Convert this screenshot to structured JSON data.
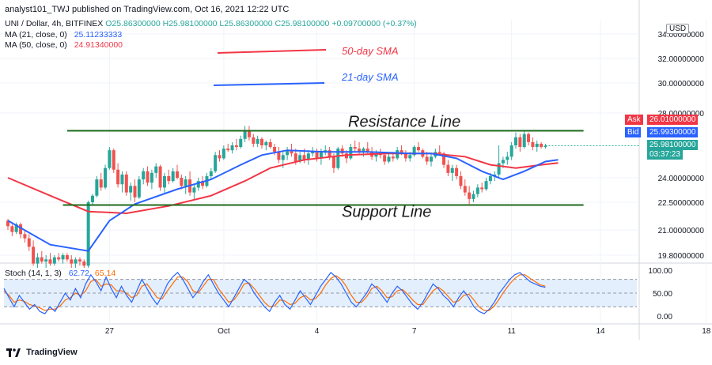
{
  "header": {
    "published": "analyst101_TWJ published on TradingView.com, Oct 16, 2021 12:22 UTC"
  },
  "legend": {
    "symbol": "UNI / Dollar, 4h, BITFINEX",
    "ohlc": "O25.86300000  H25.98100000  L25.86300000  C25.98100000  +0.09700000 (+0.37%)",
    "ma21_label": "MA (21, close, 0)",
    "ma21_value": "25.11233333",
    "ma50_label": "MA (50, close, 0)",
    "ma50_value": "24.91340000",
    "stoch_label": "Stoch (14, 1, 3)",
    "stoch_k": "62.72",
    "stoch_d": "65.14"
  },
  "currency_badge": "USD",
  "price_labels": {
    "ask_tag": "Ask",
    "ask": "26.01000000",
    "bid_tag": "Bid",
    "bid": "25.99300000",
    "last": "25.98100000",
    "countdown": "03:37:23"
  },
  "footer": {
    "brand": "TradingView"
  },
  "colors": {
    "up": "#26a69a",
    "down": "#ef5350",
    "ma21": "#2962ff",
    "ma50": "#f23645",
    "annotation_line": "#1e6b1e",
    "stoch_k": "#2962ff",
    "stoch_d": "#ff6d00",
    "stoch_band": "#e3effd"
  },
  "chart_data": {
    "type": "candlestick",
    "y_axis": {
      "ticks": [
        "34.00000000",
        "32.00000000",
        "30.00000000",
        "28.00000000",
        "24.00000000",
        "22.50000000",
        "21.00000000",
        "19.80000000"
      ],
      "tick_values": [
        34.0,
        32.0,
        30.0,
        28.0,
        24.0,
        22.5,
        21.0,
        19.8
      ]
    },
    "x_axis": {
      "ticks": [
        "27",
        "Oct",
        "4",
        "7",
        "11",
        "14",
        "18"
      ],
      "tick_index": [
        24,
        51,
        73,
        96,
        119,
        140,
        165
      ]
    },
    "annotations": {
      "legend_50": "50-day SMA",
      "legend_21": "21-day SMA",
      "resistance_label": "Resistance Line",
      "support_label": "Support Line",
      "resistance": 26.9,
      "support": 22.35
    },
    "candles": [
      [
        21.5,
        21.6,
        21.0,
        21.2
      ],
      [
        21.2,
        21.3,
        20.7,
        20.9
      ],
      [
        20.9,
        21.4,
        20.8,
        21.3
      ],
      [
        21.3,
        21.4,
        20.6,
        20.8
      ],
      [
        20.8,
        21.0,
        20.4,
        20.6
      ],
      [
        20.6,
        20.8,
        20.0,
        20.2
      ],
      [
        20.2,
        20.5,
        19.3,
        19.4
      ],
      [
        19.4,
        19.9,
        19.2,
        19.7
      ],
      [
        19.7,
        20.0,
        19.4,
        19.5
      ],
      [
        19.5,
        19.8,
        19.2,
        19.6
      ],
      [
        19.6,
        19.9,
        19.3,
        19.4
      ],
      [
        19.4,
        19.8,
        19.3,
        19.7
      ],
      [
        19.7,
        19.9,
        19.5,
        19.6
      ],
      [
        19.6,
        19.9,
        19.4,
        19.8
      ],
      [
        19.8,
        19.9,
        19.5,
        19.6
      ],
      [
        19.6,
        19.8,
        19.2,
        19.4
      ],
      [
        19.4,
        19.7,
        19.2,
        19.6
      ],
      [
        19.6,
        19.7,
        19.3,
        19.5
      ],
      [
        19.5,
        19.6,
        19.2,
        19.3
      ],
      [
        19.3,
        22.6,
        19.2,
        22.5
      ],
      [
        22.5,
        23.0,
        22.3,
        22.9
      ],
      [
        22.9,
        24.1,
        22.8,
        23.9
      ],
      [
        23.9,
        24.3,
        23.2,
        23.4
      ],
      [
        23.4,
        24.8,
        23.3,
        24.6
      ],
      [
        24.6,
        25.9,
        24.5,
        25.7
      ],
      [
        25.7,
        25.8,
        24.3,
        24.5
      ],
      [
        24.5,
        24.9,
        23.4,
        23.6
      ],
      [
        23.6,
        24.4,
        23.1,
        24.2
      ],
      [
        24.2,
        24.4,
        22.9,
        23.1
      ],
      [
        23.1,
        23.7,
        22.6,
        23.5
      ],
      [
        23.5,
        23.9,
        22.5,
        22.8
      ],
      [
        22.8,
        24.1,
        22.7,
        23.9
      ],
      [
        23.9,
        24.6,
        23.6,
        24.4
      ],
      [
        24.4,
        24.7,
        23.5,
        23.7
      ],
      [
        23.7,
        24.5,
        23.3,
        24.3
      ],
      [
        24.3,
        24.9,
        24.0,
        24.7
      ],
      [
        24.7,
        24.8,
        23.2,
        23.4
      ],
      [
        23.4,
        24.3,
        23.0,
        24.1
      ],
      [
        24.1,
        24.5,
        23.6,
        23.8
      ],
      [
        23.8,
        24.6,
        23.7,
        24.4
      ],
      [
        24.4,
        24.8,
        23.9,
        24.0
      ],
      [
        24.0,
        24.2,
        23.3,
        23.5
      ],
      [
        23.5,
        24.1,
        23.0,
        23.9
      ],
      [
        23.9,
        24.4,
        22.9,
        23.1
      ],
      [
        23.1,
        23.6,
        22.7,
        23.4
      ],
      [
        23.4,
        24.0,
        23.2,
        23.8
      ],
      [
        23.8,
        24.1,
        23.3,
        23.5
      ],
      [
        23.5,
        24.3,
        23.4,
        24.1
      ],
      [
        24.1,
        24.6,
        23.9,
        24.4
      ],
      [
        24.4,
        25.6,
        24.3,
        25.4
      ],
      [
        25.4,
        25.7,
        25.0,
        25.2
      ],
      [
        25.2,
        26.0,
        25.1,
        25.8
      ],
      [
        25.8,
        26.1,
        25.6,
        25.7
      ],
      [
        25.7,
        26.2,
        25.5,
        26.0
      ],
      [
        26.0,
        26.4,
        25.7,
        25.9
      ],
      [
        25.9,
        26.6,
        25.8,
        26.4
      ],
      [
        26.4,
        27.2,
        26.2,
        26.9
      ],
      [
        26.9,
        27.2,
        26.3,
        26.5
      ],
      [
        26.5,
        26.7,
        25.9,
        26.1
      ],
      [
        26.1,
        26.6,
        25.9,
        26.4
      ],
      [
        26.4,
        26.5,
        25.8,
        26.0
      ],
      [
        26.0,
        26.3,
        25.7,
        26.2
      ],
      [
        26.2,
        26.4,
        25.8,
        25.9
      ],
      [
        25.9,
        26.1,
        25.4,
        25.6
      ],
      [
        25.6,
        25.9,
        24.9,
        25.1
      ],
      [
        25.1,
        25.6,
        24.6,
        25.4
      ],
      [
        25.4,
        25.9,
        25.1,
        25.7
      ],
      [
        25.7,
        26.1,
        25.3,
        25.5
      ],
      [
        25.5,
        25.8,
        24.8,
        25.0
      ],
      [
        25.0,
        25.6,
        24.9,
        25.4
      ],
      [
        25.4,
        25.8,
        24.9,
        25.1
      ],
      [
        25.1,
        25.7,
        24.8,
        25.5
      ],
      [
        25.5,
        25.9,
        25.3,
        25.6
      ],
      [
        25.6,
        25.8,
        25.0,
        25.2
      ],
      [
        25.2,
        25.8,
        24.8,
        25.6
      ],
      [
        25.6,
        26.0,
        25.4,
        25.7
      ],
      [
        25.7,
        25.9,
        25.1,
        25.3
      ],
      [
        25.3,
        25.5,
        24.3,
        24.6
      ],
      [
        24.6,
        25.9,
        24.5,
        25.8
      ],
      [
        25.8,
        26.0,
        25.3,
        25.5
      ],
      [
        25.5,
        25.7,
        24.9,
        25.2
      ],
      [
        25.2,
        26.1,
        25.1,
        25.9
      ],
      [
        25.9,
        26.3,
        25.6,
        25.8
      ],
      [
        25.8,
        26.2,
        25.4,
        25.6
      ],
      [
        25.6,
        25.9,
        25.3,
        25.8
      ],
      [
        25.8,
        26.2,
        25.5,
        25.6
      ],
      [
        25.6,
        25.9,
        25.1,
        25.3
      ],
      [
        25.3,
        25.7,
        25.0,
        25.5
      ],
      [
        25.5,
        25.8,
        25.2,
        25.4
      ],
      [
        25.4,
        25.6,
        24.8,
        25.0
      ],
      [
        25.0,
        25.5,
        24.9,
        25.3
      ],
      [
        25.3,
        25.6,
        25.0,
        25.2
      ],
      [
        25.2,
        25.9,
        25.1,
        25.7
      ],
      [
        25.7,
        26.0,
        25.4,
        25.5
      ],
      [
        25.5,
        25.7,
        25.0,
        25.2
      ],
      [
        25.2,
        25.6,
        25.0,
        25.4
      ],
      [
        25.4,
        26.0,
        25.3,
        25.9
      ],
      [
        25.9,
        26.2,
        25.6,
        25.7
      ],
      [
        25.7,
        25.8,
        25.2,
        25.3
      ],
      [
        25.3,
        25.6,
        24.8,
        25.0
      ],
      [
        25.0,
        25.5,
        24.7,
        25.3
      ],
      [
        25.3,
        25.8,
        25.2,
        25.6
      ],
      [
        25.6,
        26.0,
        25.4,
        25.5
      ],
      [
        25.5,
        25.6,
        24.6,
        24.8
      ],
      [
        24.8,
        25.1,
        24.1,
        24.3
      ],
      [
        24.3,
        24.8,
        23.8,
        24.6
      ],
      [
        24.6,
        24.8,
        23.9,
        24.1
      ],
      [
        24.1,
        24.4,
        23.3,
        23.5
      ],
      [
        23.5,
        23.9,
        22.9,
        23.1
      ],
      [
        23.1,
        23.5,
        22.4,
        22.7
      ],
      [
        22.7,
        23.2,
        22.5,
        23.0
      ],
      [
        23.0,
        23.6,
        22.8,
        23.4
      ],
      [
        23.4,
        23.7,
        23.1,
        23.3
      ],
      [
        23.3,
        24.0,
        23.2,
        23.8
      ],
      [
        23.8,
        24.3,
        23.6,
        24.1
      ],
      [
        24.1,
        24.4,
        23.8,
        24.2
      ],
      [
        24.2,
        26.0,
        24.0,
        24.9
      ],
      [
        24.9,
        25.3,
        24.6,
        25.1
      ],
      [
        25.1,
        25.6,
        24.8,
        25.3
      ],
      [
        25.3,
        26.2,
        25.1,
        26.0
      ],
      [
        26.0,
        26.8,
        25.8,
        26.5
      ],
      [
        26.5,
        26.7,
        25.6,
        25.9
      ],
      [
        25.9,
        26.9,
        25.8,
        26.7
      ],
      [
        26.7,
        26.8,
        26.0,
        26.2
      ],
      [
        26.2,
        26.5,
        25.7,
        25.9
      ],
      [
        25.9,
        26.3,
        25.6,
        26.1
      ],
      [
        26.1,
        26.2,
        25.8,
        25.9
      ],
      [
        25.9,
        26.1,
        25.8,
        25.98
      ]
    ],
    "ma21_points": [
      [
        0,
        21.5
      ],
      [
        10,
        20.3
      ],
      [
        19,
        20.0
      ],
      [
        24,
        21.5
      ],
      [
        30,
        22.4
      ],
      [
        40,
        23.3
      ],
      [
        48,
        23.9
      ],
      [
        55,
        24.8
      ],
      [
        60,
        25.4
      ],
      [
        66,
        25.7
      ],
      [
        75,
        25.6
      ],
      [
        85,
        25.6
      ],
      [
        95,
        25.5
      ],
      [
        100,
        25.5
      ],
      [
        106,
        25.2
      ],
      [
        112,
        24.4
      ],
      [
        117,
        23.9
      ],
      [
        122,
        24.4
      ],
      [
        127,
        25.0
      ],
      [
        130,
        25.11
      ]
    ],
    "ma50_points": [
      [
        0,
        24.0
      ],
      [
        10,
        22.9
      ],
      [
        19,
        22.0
      ],
      [
        28,
        21.9
      ],
      [
        38,
        22.3
      ],
      [
        48,
        22.9
      ],
      [
        56,
        23.8
      ],
      [
        62,
        24.6
      ],
      [
        70,
        25.1
      ],
      [
        80,
        25.4
      ],
      [
        90,
        25.5
      ],
      [
        100,
        25.5
      ],
      [
        108,
        25.3
      ],
      [
        114,
        24.8
      ],
      [
        120,
        24.6
      ],
      [
        126,
        24.8
      ],
      [
        130,
        24.91
      ]
    ],
    "stochastic": {
      "y_ticks": [
        "100.00",
        "50.00",
        "0.00"
      ],
      "y_tick_values": [
        100,
        50,
        0
      ],
      "band": [
        20,
        80
      ],
      "k": [
        60,
        40,
        20,
        45,
        30,
        15,
        25,
        10,
        5,
        20,
        10,
        30,
        50,
        35,
        60,
        40,
        70,
        90,
        75,
        55,
        85,
        60,
        40,
        65,
        45,
        30,
        55,
        80,
        60,
        40,
        25,
        45,
        70,
        85,
        95,
        80,
        60,
        40,
        55,
        75,
        90,
        70,
        50,
        35,
        20,
        40,
        60,
        80,
        70,
        50,
        35,
        20,
        10,
        30,
        45,
        25,
        15,
        35,
        55,
        40,
        25,
        45,
        65,
        80,
        95,
        85,
        70,
        50,
        30,
        20,
        35,
        50,
        70,
        60,
        45,
        30,
        50,
        65,
        55,
        40,
        25,
        15,
        30,
        50,
        70,
        60,
        45,
        35,
        20,
        40,
        55,
        40,
        20,
        10,
        5,
        15,
        30,
        50,
        65,
        80,
        90,
        95,
        85,
        75,
        70,
        65,
        62.72
      ],
      "d": [
        55,
        45,
        30,
        35,
        32,
        25,
        22,
        18,
        12,
        15,
        15,
        22,
        35,
        40,
        50,
        45,
        55,
        75,
        80,
        65,
        70,
        68,
        55,
        55,
        50,
        40,
        45,
        65,
        70,
        55,
        40,
        38,
        55,
        70,
        85,
        85,
        75,
        55,
        50,
        65,
        80,
        80,
        60,
        45,
        30,
        35,
        50,
        70,
        72,
        60,
        45,
        30,
        20,
        22,
        35,
        33,
        25,
        28,
        40,
        45,
        35,
        38,
        50,
        68,
        82,
        88,
        80,
        65,
        45,
        30,
        30,
        42,
        60,
        65,
        55,
        40,
        42,
        55,
        58,
        48,
        35,
        25,
        25,
        40,
        55,
        63,
        55,
        42,
        30,
        33,
        45,
        48,
        35,
        20,
        12,
        12,
        22,
        38,
        55,
        70,
        82,
        90,
        90,
        82,
        75,
        68,
        65.14
      ]
    }
  }
}
